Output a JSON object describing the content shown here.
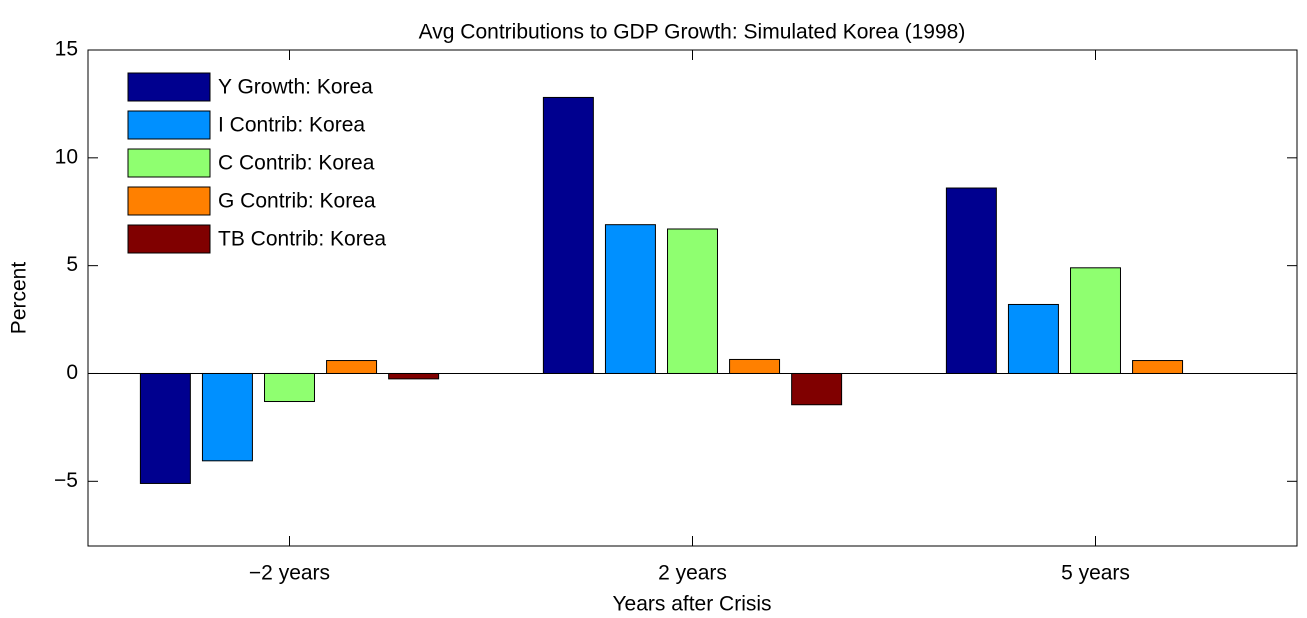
{
  "chart_data": {
    "type": "bar",
    "title": "Avg Contributions to GDP Growth: Simulated Korea (1998)",
    "x_label": "Years after Crisis",
    "y_label": "Percent",
    "categories": [
      "−2 years",
      "2 years",
      "5 years"
    ],
    "series": [
      {
        "name": "Y Growth: Korea",
        "color": "#00008f",
        "values": [
          -5.1,
          12.8,
          8.6
        ]
      },
      {
        "name": "I Contrib: Korea",
        "color": "#0090ff",
        "values": [
          -4.05,
          6.9,
          3.2
        ]
      },
      {
        "name": "C Contrib: Korea",
        "color": "#8fff70",
        "values": [
          -1.3,
          6.7,
          4.9
        ]
      },
      {
        "name": "G Contrib: Korea",
        "color": "#ff8000",
        "values": [
          0.6,
          0.65,
          0.6
        ]
      },
      {
        "name": "TB Contrib: Korea",
        "color": "#800000",
        "values": [
          -0.25,
          -1.45,
          0.0
        ]
      }
    ],
    "ylim": [
      -8,
      15
    ],
    "yticks": [
      {
        "value": -5,
        "label": "−5"
      },
      0,
      5,
      10,
      15
    ],
    "grid": false,
    "legend": "northwest"
  }
}
